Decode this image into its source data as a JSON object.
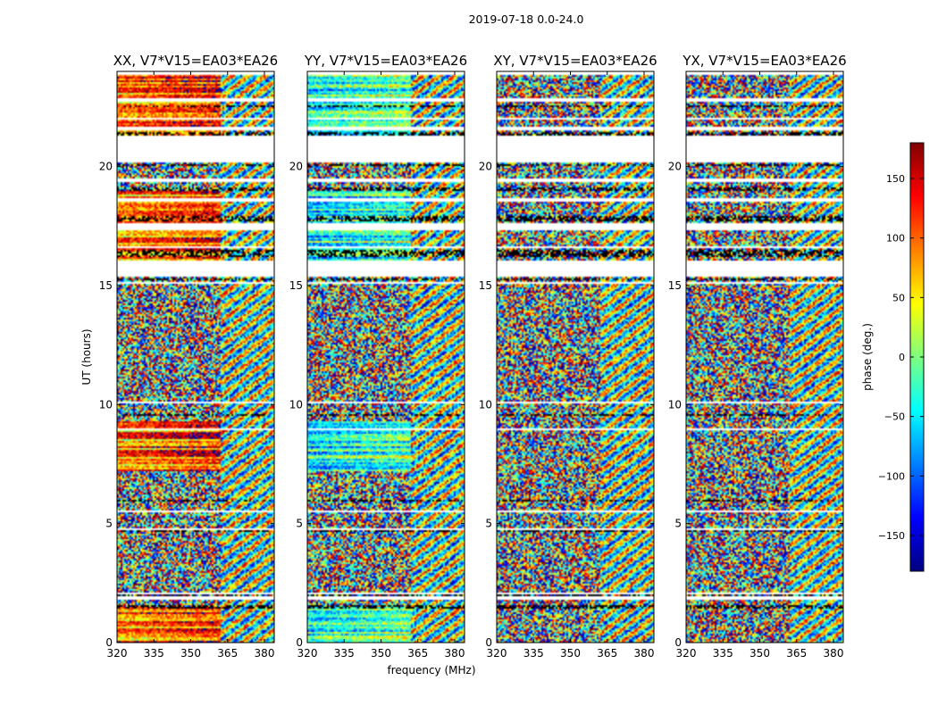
{
  "figure": {
    "suptitle": "2019-07-18 0.0-24.0"
  },
  "chart_data": {
    "type": "heatmap",
    "xlabel": "frequency (MHz)",
    "ylabel": "UT (hours)",
    "xlim": [
      320,
      384
    ],
    "ylim": [
      0,
      24
    ],
    "xticks": [
      320,
      335,
      350,
      365,
      380
    ],
    "yticks": [
      0,
      5,
      10,
      15,
      20
    ],
    "colorbar": {
      "label": "phase (deg.)",
      "range": [
        -180,
        180
      ],
      "ticks": [
        150,
        100,
        50,
        0,
        -50,
        -100,
        -150
      ],
      "tick_labels": [
        "150",
        "100",
        "50",
        "0",
        "−50",
        "−100",
        "−150"
      ],
      "colormap": "jet",
      "colormap_stops": [
        "#00007f",
        "#0000ff",
        "#007fff",
        "#00ffff",
        "#7fff7f",
        "#ffff00",
        "#ff7f00",
        "#ff0000",
        "#7f0000"
      ]
    },
    "panels": [
      {
        "title": "XX, V7*V15=EA03*EA26",
        "polarization": "XX"
      },
      {
        "title": "YY, V7*V15=EA03*EA26",
        "polarization": "YY"
      },
      {
        "title": "XY, V7*V15=EA03*EA26",
        "polarization": "XY"
      },
      {
        "title": "YX, V7*V15=EA03*EA26",
        "polarization": "YX"
      }
    ],
    "flagged_ut_ranges": [
      [
        1.45,
        1.55
      ],
      [
        1.98,
        2.02
      ],
      [
        4.65,
        4.72
      ],
      [
        5.9,
        6.0
      ],
      [
        9.5,
        9.6
      ],
      [
        12.8,
        12.85
      ],
      [
        15.2,
        15.3
      ],
      [
        16.2,
        16.5
      ],
      [
        17.7,
        17.9
      ],
      [
        19.0,
        19.15
      ],
      [
        20.0,
        20.1
      ],
      [
        21.3,
        21.45
      ],
      [
        22.5,
        22.55
      ]
    ],
    "gaps_ut": [
      [
        1.8,
        1.95
      ],
      [
        2.05,
        2.1
      ],
      [
        4.75,
        4.8
      ],
      [
        5.5,
        5.58
      ],
      [
        8.9,
        9.0
      ],
      [
        10.05,
        10.15
      ],
      [
        14.0,
        14.05
      ],
      [
        15.05,
        15.15
      ],
      [
        15.35,
        16.05
      ],
      [
        16.6,
        16.65
      ],
      [
        17.35,
        17.6
      ],
      [
        18.55,
        18.65
      ],
      [
        19.35,
        19.5
      ],
      [
        19.7,
        19.75
      ],
      [
        20.2,
        21.3
      ],
      [
        21.55,
        21.65
      ],
      [
        22.0,
        22.05
      ],
      [
        22.7,
        22.9
      ],
      [
        23.85,
        24.0
      ]
    ]
  }
}
